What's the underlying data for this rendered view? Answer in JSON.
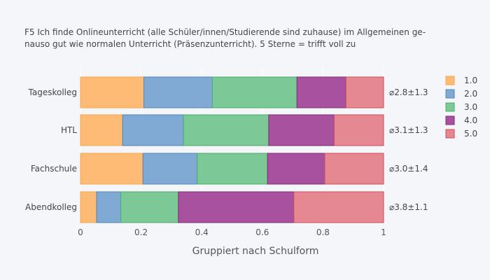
{
  "chart_data": {
    "type": "bar",
    "orientation": "horizontal",
    "stacked": true,
    "normalized": true,
    "title_lines": [
      "F5 Ich finde Onlineunterricht (alle Schüler/innen/Studierende sind zuhause) im Allgemeinen ge-",
      "nauso gut wie normalen Unterricht (Präsenzunterricht). 5 Sterne = trifft voll zu"
    ],
    "xlabel": "Gruppiert nach Schulform",
    "xlim": [
      0,
      1
    ],
    "xticks": [
      "0",
      "0.2",
      "0.4",
      "0.6",
      "0.8",
      "1"
    ],
    "grid": true,
    "legend_position": "right",
    "categories": [
      "Tageskolleg",
      "HTL",
      "Fachschule",
      "Abendkolleg"
    ],
    "annotations": [
      "⌀2.8±1.3",
      "⌀3.1±1.3",
      "⌀3.0±1.4",
      "⌀3.8±1.1"
    ],
    "series": [
      {
        "name": "1.0",
        "color": "#fdbb76",
        "stroke": "#f5a54a",
        "values": [
          0.209,
          0.139,
          0.206,
          0.053
        ]
      },
      {
        "name": "2.0",
        "color": "#80aad3",
        "stroke": "#4e86bd",
        "values": [
          0.226,
          0.201,
          0.179,
          0.08
        ]
      },
      {
        "name": "3.0",
        "color": "#7cc896",
        "stroke": "#4aae6c",
        "values": [
          0.279,
          0.281,
          0.232,
          0.19
        ]
      },
      {
        "name": "4.0",
        "color": "#a8529f",
        "stroke": "#7c2c78",
        "values": [
          0.162,
          0.216,
          0.189,
          0.381
        ]
      },
      {
        "name": "5.0",
        "color": "#e58891",
        "stroke": "#cf4d5b",
        "values": [
          0.124,
          0.163,
          0.194,
          0.296
        ]
      }
    ]
  }
}
